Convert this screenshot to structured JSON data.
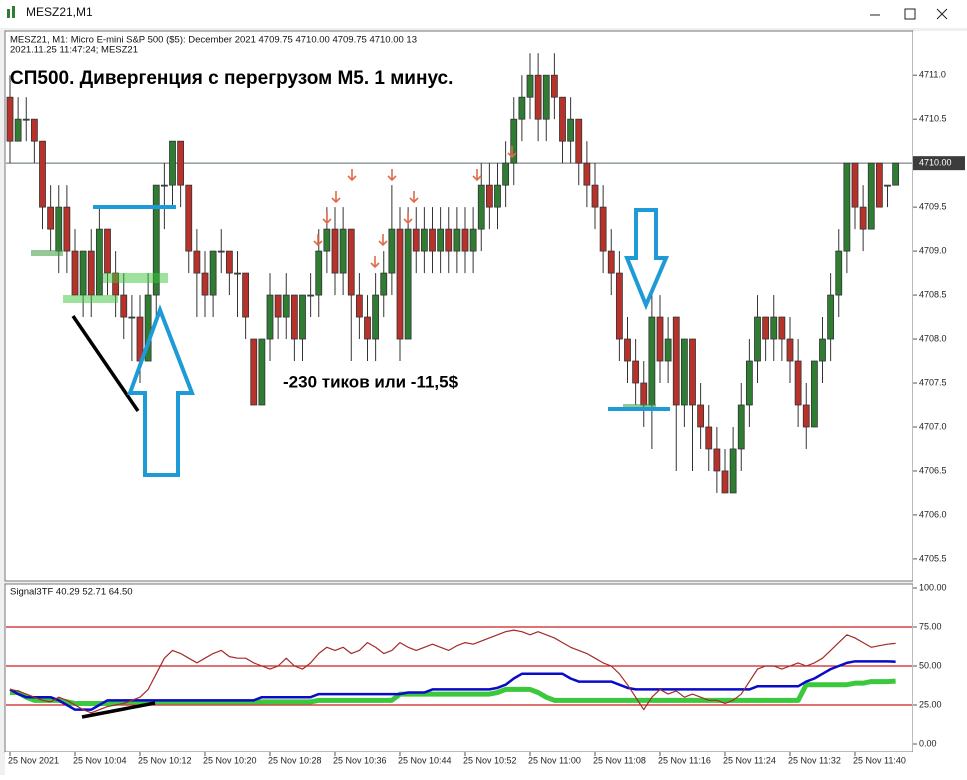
{
  "window": {
    "title": "MESZ21,M1"
  },
  "chart_data": [
    {
      "type": "candlestick",
      "info_lines": [
        "MESZ21, M1:  Micro E-mini S&P 500 ($5): December 2021  4709.75 4710.00 4709.75 4710.00  13",
        "2021.11.25 11:47:24; MESZ21"
      ],
      "title": "СП500. Дивергенция с перегрузом М5. 1 минус.",
      "annotation": "-230 тиков или -11,5$",
      "up_color": "#2f7d32",
      "down_color": "#b8322c",
      "ylim": [
        4705.26,
        4711.48
      ],
      "yticks": [
        4705.5,
        {
          "value": 4706,
          "label": "4706.0"
        },
        4706.5,
        {
          "value": 4707,
          "label": "4707.0"
        },
        4707.5,
        {
          "value": 4708,
          "label": "4708.0"
        },
        4708.5,
        {
          "value": 4709,
          "label": "4709.0"
        },
        4709.5,
        {
          "value": 4710,
          "label": "4710.0"
        },
        4710.5,
        {
          "value": 4711,
          "label": "4711.0"
        }
      ],
      "current_price": {
        "value": 4710,
        "label": "4710.00"
      },
      "ohlc": [
        [
          4710.75,
          4711.0,
          4710.0,
          4710.25
        ],
        [
          4710.25,
          4710.75,
          4710.25,
          4710.5
        ],
        [
          4710.5,
          4710.75,
          4710.25,
          4710.5
        ],
        [
          4710.5,
          4710.5,
          4710.0,
          4710.25
        ],
        [
          4710.25,
          4710.25,
          4709.25,
          4709.5
        ],
        [
          4709.5,
          4709.75,
          4709.0,
          4709.25
        ],
        [
          4709.0,
          4709.75,
          4708.75,
          4709.5
        ],
        [
          4709.5,
          4709.75,
          4708.75,
          4709.0
        ],
        [
          4709.0,
          4709.25,
          4708.5,
          4708.5
        ],
        [
          4708.5,
          4709.0,
          4708.25,
          4709.0
        ],
        [
          4709.0,
          4709.25,
          4708.25,
          4708.5
        ],
        [
          4708.5,
          4709.5,
          4708.5,
          4709.25
        ],
        [
          4709.25,
          4709.25,
          4708.5,
          4708.75
        ],
        [
          4708.75,
          4709.0,
          4708.25,
          4708.5
        ],
        [
          4708.5,
          4708.75,
          4708.0,
          4708.25
        ],
        [
          4708.25,
          4708.5,
          4707.75,
          4708.25
        ],
        [
          4708.25,
          4708.5,
          4707.5,
          4707.75
        ],
        [
          4707.75,
          4708.75,
          4707.75,
          4708.5
        ],
        [
          4708.5,
          4709.75,
          4708.25,
          4709.75
        ],
        [
          4709.75,
          4710.0,
          4709.25,
          4709.75
        ],
        [
          4709.75,
          4710.25,
          4709.5,
          4710.25
        ],
        [
          4710.25,
          4710.25,
          4709.5,
          4709.75
        ],
        [
          4709.75,
          4709.75,
          4708.75,
          4709.0
        ],
        [
          4709.0,
          4709.25,
          4708.25,
          4708.75
        ],
        [
          4708.75,
          4709.0,
          4708.25,
          4708.5
        ],
        [
          4708.5,
          4709.0,
          4708.25,
          4709.0
        ],
        [
          4709.0,
          4709.25,
          4708.75,
          4709.0
        ],
        [
          4709.0,
          4709.0,
          4708.5,
          4708.75
        ],
        [
          4708.75,
          4709.0,
          4708.25,
          4708.75
        ],
        [
          4708.75,
          4708.75,
          4708.0,
          4708.25
        ],
        [
          4708.0,
          4708.0,
          4707.25,
          4707.25
        ],
        [
          4707.25,
          4708.0,
          4707.25,
          4708.0
        ],
        [
          4708.0,
          4708.75,
          4707.75,
          4708.5
        ],
        [
          4708.5,
          4708.5,
          4708.0,
          4708.25
        ],
        [
          4708.25,
          4708.75,
          4708.0,
          4708.5
        ],
        [
          4708.5,
          4708.5,
          4707.75,
          4708.0
        ],
        [
          4708.0,
          4708.5,
          4707.75,
          4708.5
        ],
        [
          4708.5,
          4708.75,
          4708.25,
          4708.5
        ],
        [
          4708.5,
          4709.25,
          4708.25,
          4709.0
        ],
        [
          4709.0,
          4709.5,
          4708.75,
          4709.25
        ],
        [
          4709.25,
          4709.5,
          4708.5,
          4708.75
        ],
        [
          4708.75,
          4709.5,
          4708.5,
          4709.25
        ],
        [
          4709.25,
          4709.25,
          4707.75,
          4708.5
        ],
        [
          4708.5,
          4708.75,
          4708.0,
          4708.25
        ],
        [
          4708.25,
          4708.5,
          4707.75,
          4708.0
        ],
        [
          4708.0,
          4708.75,
          4707.75,
          4708.5
        ],
        [
          4708.5,
          4709.0,
          4708.25,
          4708.75
        ],
        [
          4708.75,
          4709.75,
          4708.5,
          4709.25
        ],
        [
          4709.25,
          4709.5,
          4707.75,
          4708.0
        ],
        [
          4708.0,
          4709.5,
          4708.0,
          4709.25
        ],
        [
          4709.25,
          4709.5,
          4708.75,
          4709.0
        ],
        [
          4709.0,
          4709.5,
          4708.75,
          4709.25
        ],
        [
          4709.25,
          4709.5,
          4708.75,
          4709.0
        ],
        [
          4709.0,
          4709.5,
          4708.75,
          4709.25
        ],
        [
          4709.25,
          4709.5,
          4708.75,
          4709.0
        ],
        [
          4709.0,
          4709.5,
          4708.75,
          4709.25
        ],
        [
          4709.25,
          4709.5,
          4708.75,
          4709.0
        ],
        [
          4709.0,
          4709.5,
          4708.75,
          4709.25
        ],
        [
          4709.25,
          4710.0,
          4709.0,
          4709.75
        ],
        [
          4709.75,
          4710.0,
          4709.25,
          4709.5
        ],
        [
          4709.5,
          4710.0,
          4709.25,
          4709.75
        ],
        [
          4709.75,
          4710.25,
          4709.5,
          4710.0
        ],
        [
          4710.0,
          4710.75,
          4709.75,
          4710.5
        ],
        [
          4710.5,
          4711.0,
          4710.25,
          4710.75
        ],
        [
          4710.75,
          4711.25,
          4710.5,
          4711.0
        ],
        [
          4711.0,
          4711.25,
          4710.25,
          4710.5
        ],
        [
          4710.5,
          4711.0,
          4710.25,
          4711.0
        ],
        [
          4711.0,
          4711.25,
          4710.5,
          4710.75
        ],
        [
          4710.75,
          4710.75,
          4710.0,
          4710.25
        ],
        [
          4710.25,
          4710.75,
          4710.0,
          4710.5
        ],
        [
          4710.5,
          4710.5,
          4709.75,
          4710.0
        ],
        [
          4710.0,
          4710.25,
          4709.5,
          4709.75
        ],
        [
          4709.75,
          4710.0,
          4709.25,
          4709.5
        ],
        [
          4709.5,
          4709.75,
          4708.75,
          4709.0
        ],
        [
          4709.0,
          4709.25,
          4708.5,
          4708.75
        ],
        [
          4708.75,
          4709.0,
          4707.75,
          4708.0
        ],
        [
          4708.0,
          4708.25,
          4707.5,
          4707.75
        ],
        [
          4707.75,
          4708.0,
          4707.25,
          4707.5
        ],
        [
          4707.5,
          4707.75,
          4707.0,
          4707.25
        ],
        [
          4707.25,
          4708.5,
          4706.75,
          4708.25
        ],
        [
          4708.25,
          4708.5,
          4707.5,
          4707.75
        ],
        [
          4707.75,
          4708.25,
          4707.5,
          4708.0
        ],
        [
          4708.25,
          4708.25,
          4706.5,
          4707.25
        ],
        [
          4707.25,
          4708.0,
          4707.0,
          4708.0
        ],
        [
          4708.0,
          4708.0,
          4706.5,
          4707.25
        ],
        [
          4707.25,
          4707.5,
          4706.75,
          4707.0
        ],
        [
          4707.0,
          4707.25,
          4706.5,
          4706.75
        ],
        [
          4706.75,
          4707.0,
          4706.25,
          4706.5
        ],
        [
          4706.5,
          4706.75,
          4706.25,
          4706.25
        ],
        [
          4706.25,
          4707.0,
          4706.25,
          4706.75
        ],
        [
          4706.75,
          4707.5,
          4706.5,
          4707.25
        ],
        [
          4707.25,
          4708.0,
          4707.0,
          4707.75
        ],
        [
          4707.75,
          4708.5,
          4707.5,
          4708.25
        ],
        [
          4708.25,
          4708.25,
          4707.75,
          4708.0
        ],
        [
          4708.0,
          4708.5,
          4707.75,
          4708.25
        ],
        [
          4708.25,
          4708.25,
          4707.75,
          4708.0
        ],
        [
          4708.0,
          4708.25,
          4707.5,
          4707.75
        ],
        [
          4707.75,
          4708.0,
          4707.0,
          4707.25
        ],
        [
          4707.25,
          4707.5,
          4706.75,
          4707.0
        ],
        [
          4707.0,
          4707.75,
          4707.0,
          4707.75
        ],
        [
          4707.75,
          4708.25,
          4707.5,
          4708.0
        ],
        [
          4708.0,
          4708.75,
          4707.75,
          4708.5
        ],
        [
          4708.5,
          4709.25,
          4708.25,
          4709.0
        ],
        [
          4709.0,
          4710.0,
          4708.75,
          4710.0
        ],
        [
          4710.0,
          4710.0,
          4709.25,
          4709.5
        ],
        [
          4709.5,
          4709.75,
          4709.0,
          4709.25
        ],
        [
          4709.25,
          4710.0,
          4709.25,
          4710.0
        ],
        [
          4710.0,
          4710.0,
          4709.5,
          4709.5
        ],
        [
          4709.75,
          4709.75,
          4709.5,
          4709.75
        ],
        [
          4709.75,
          4710.0,
          4709.75,
          4710.0
        ]
      ]
    },
    {
      "type": "line",
      "title": "Signal3TF 40.29 52.71 64.50",
      "categories": [
        "25 Nov 2021",
        null,
        null,
        null,
        null,
        null,
        null,
        null,
        "25 Nov 10:04",
        null,
        null,
        null,
        null,
        null,
        null,
        null,
        "25 Nov 10:12",
        null,
        null,
        null,
        null,
        null,
        null,
        null,
        "25 Nov 10:20",
        null,
        null,
        null,
        null,
        null,
        null,
        null,
        "25 Nov 10:28",
        null,
        null,
        null,
        null,
        null,
        null,
        null,
        "25 Nov 10:36",
        null,
        null,
        null,
        null,
        null,
        null,
        null,
        "25 Nov 10:44",
        null,
        null,
        null,
        null,
        null,
        null,
        null,
        "25 Nov 10:52",
        null,
        null,
        null,
        null,
        null,
        null,
        null,
        "25 Nov 11:00",
        null,
        null,
        null,
        null,
        null,
        null,
        null,
        "25 Nov 11:08",
        null,
        null,
        null,
        null,
        null,
        null,
        null,
        "25 Nov 11:16",
        null,
        null,
        null,
        null,
        null,
        null,
        null,
        "25 Nov 11:24",
        null,
        null,
        null,
        null,
        null,
        null,
        null,
        "25 Nov 11:32",
        null,
        null,
        null,
        null,
        null,
        null,
        null,
        "25 Nov 11:40",
        null,
        null,
        null,
        null,
        null
      ],
      "ylim": [
        0,
        100
      ],
      "yticks": [
        {
          "value": 0,
          "label": "0.00"
        },
        {
          "value": 25,
          "label": "25.00"
        },
        {
          "value": 50,
          "label": "50.00"
        },
        {
          "value": 75,
          "label": "75.00"
        },
        {
          "value": 100,
          "label": "100.00"
        }
      ],
      "levels": [
        25,
        50,
        75
      ],
      "level_color": "#cc1f1f",
      "series": [
        {
          "color": "#3cc83c",
          "width": 5,
          "values": [
            33,
            33,
            30,
            28,
            28,
            28,
            28,
            27,
            26,
            26,
            26,
            26,
            26,
            26,
            27,
            27,
            27,
            27,
            27,
            27,
            27,
            27,
            27,
            27,
            27,
            27,
            27,
            27,
            27,
            27,
            27,
            27,
            27,
            27,
            27,
            27,
            27,
            27,
            28,
            28,
            28,
            28,
            28,
            28,
            28,
            28,
            28,
            28,
            32,
            32,
            32,
            32,
            32,
            32,
            32,
            32,
            32,
            32,
            32,
            32,
            33,
            35,
            35,
            35,
            35,
            33,
            30,
            28,
            28,
            28,
            28,
            28,
            28,
            28,
            28,
            28,
            28,
            28,
            28,
            28,
            28,
            28,
            28,
            28,
            28,
            28,
            28,
            28,
            28,
            28,
            28,
            28,
            28,
            28,
            28,
            28,
            28,
            28,
            38,
            38,
            38,
            38,
            38,
            38,
            39,
            39,
            40,
            40,
            40,
            40.29
          ]
        },
        {
          "color": "#0a0ac8",
          "width": 2.5,
          "values": [
            35,
            32,
            30,
            30,
            30,
            30,
            28,
            25,
            22,
            22,
            22,
            25,
            28,
            28,
            28,
            28,
            28,
            28,
            28,
            28,
            28,
            28,
            28,
            28,
            28,
            28,
            28,
            28,
            28,
            28,
            28,
            30,
            30,
            30,
            30,
            30,
            30,
            30,
            32,
            32,
            32,
            32,
            32,
            32,
            32,
            32,
            32,
            32,
            32,
            33,
            33,
            33,
            35,
            35,
            35,
            35,
            35,
            35,
            35,
            35,
            36,
            38,
            42,
            45,
            45,
            45,
            45,
            45,
            45,
            42,
            40,
            40,
            40,
            40,
            40,
            38,
            36,
            35,
            35,
            35,
            35,
            35,
            35,
            35,
            35,
            35,
            35,
            35,
            35,
            35,
            35,
            35,
            37,
            37,
            37,
            37,
            37,
            37,
            40,
            42,
            45,
            48,
            50,
            52,
            53,
            53,
            53,
            53,
            53,
            52.71
          ]
        },
        {
          "color": "#a52a2a",
          "width": 1.2,
          "values": [
            35,
            34,
            32,
            30,
            28,
            27,
            30,
            28,
            25,
            22,
            20,
            22,
            24,
            25,
            26,
            28,
            30,
            35,
            45,
            55,
            60,
            58,
            55,
            52,
            55,
            58,
            60,
            56,
            55,
            55,
            52,
            50,
            48,
            50,
            55,
            50,
            48,
            52,
            58,
            62,
            60,
            62,
            58,
            60,
            65,
            62,
            58,
            60,
            65,
            62,
            60,
            62,
            64,
            62,
            60,
            63,
            65,
            64,
            66,
            68,
            70,
            72,
            73,
            72,
            70,
            72,
            70,
            68,
            65,
            62,
            60,
            58,
            55,
            52,
            50,
            45,
            38,
            30,
            22,
            30,
            35,
            32,
            34,
            30,
            32,
            30,
            28,
            28,
            26,
            28,
            32,
            40,
            48,
            50,
            50,
            48,
            50,
            52,
            50,
            52,
            55,
            60,
            65,
            70,
            68,
            65,
            62,
            63,
            64,
            64.5
          ]
        }
      ]
    }
  ]
}
